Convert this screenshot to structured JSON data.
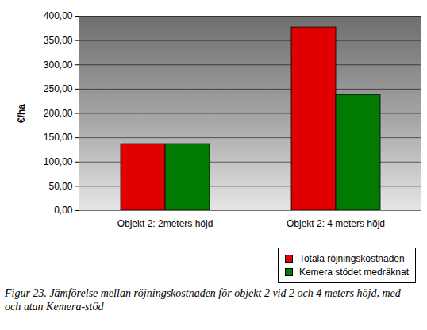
{
  "chart_data": {
    "type": "bar",
    "caption": "Figur 23. Jämförelse mellan röjningskostnaden för objekt 2 vid 2 och 4 meters höjd, med och utan Kemera-stöd",
    "y_label": "€/ha",
    "categories": [
      "Objekt 2: 2meters höjd",
      "Objekt 2: 4 meters höjd"
    ],
    "series": [
      {
        "name": "Totala röjningskostnaden",
        "color": "#e00000",
        "values": [
          137,
          377
        ]
      },
      {
        "name": "Kemera stödet medräknat",
        "color": "#007a00",
        "values": [
          137,
          238
        ]
      }
    ],
    "ylim": [
      0,
      400
    ],
    "yticks": [
      {
        "value": 0,
        "label": "0,00"
      },
      {
        "value": 50,
        "label": "50,00"
      },
      {
        "value": 100,
        "label": "100,00"
      },
      {
        "value": 150,
        "label": "150,00"
      },
      {
        "value": 200,
        "label": "200,00"
      },
      {
        "value": 250,
        "label": "250,00"
      },
      {
        "value": 300,
        "label": "300,00"
      },
      {
        "value": 350,
        "label": "350,00"
      },
      {
        "value": 400,
        "label": "400,00"
      }
    ],
    "grid": true,
    "legend": "bottom right"
  }
}
